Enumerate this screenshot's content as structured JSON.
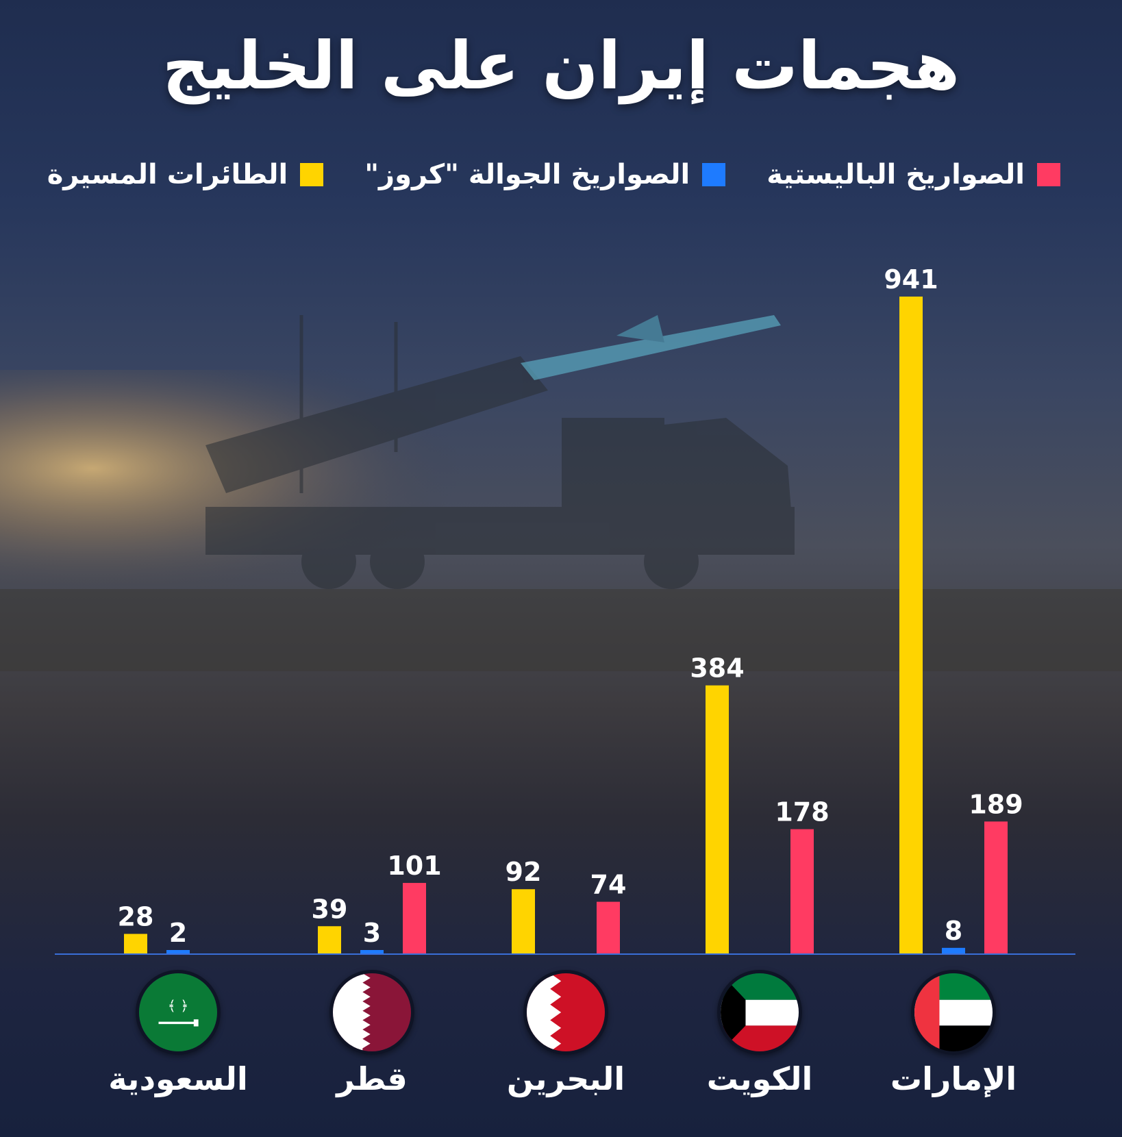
{
  "title": "هجمات إيران على الخليج",
  "legend": [
    {
      "label": "الصواريخ الباليستية",
      "color": "#ff3b62"
    },
    {
      "label": "الصواريخ الجوالة \"كروز\"",
      "color": "#1e7bff"
    },
    {
      "label": "الطائرات المسيرة",
      "color": "#ffd400"
    }
  ],
  "chart_data": {
    "type": "bar",
    "categories": [
      "السعودية",
      "قطر",
      "البحرين",
      "الكويت",
      "الإمارات"
    ],
    "series": [
      {
        "name": "الطائرات المسيرة",
        "color": "#ffd400",
        "values": [
          28,
          39,
          92,
          384,
          941
        ]
      },
      {
        "name": "الصواريخ الجوالة \"كروز\"",
        "color": "#1e7bff",
        "values": [
          2,
          3,
          null,
          null,
          8
        ]
      },
      {
        "name": "الصواريخ الباليستية",
        "color": "#ff3b62",
        "values": [
          null,
          101,
          74,
          178,
          189
        ]
      }
    ],
    "ylim": [
      0,
      941
    ],
    "grid": false,
    "legend_position": "top"
  },
  "flags": [
    "saudi-flag-icon",
    "qatar-flag-icon",
    "bahrain-flag-icon",
    "kuwait-flag-icon",
    "uae-flag-icon"
  ]
}
